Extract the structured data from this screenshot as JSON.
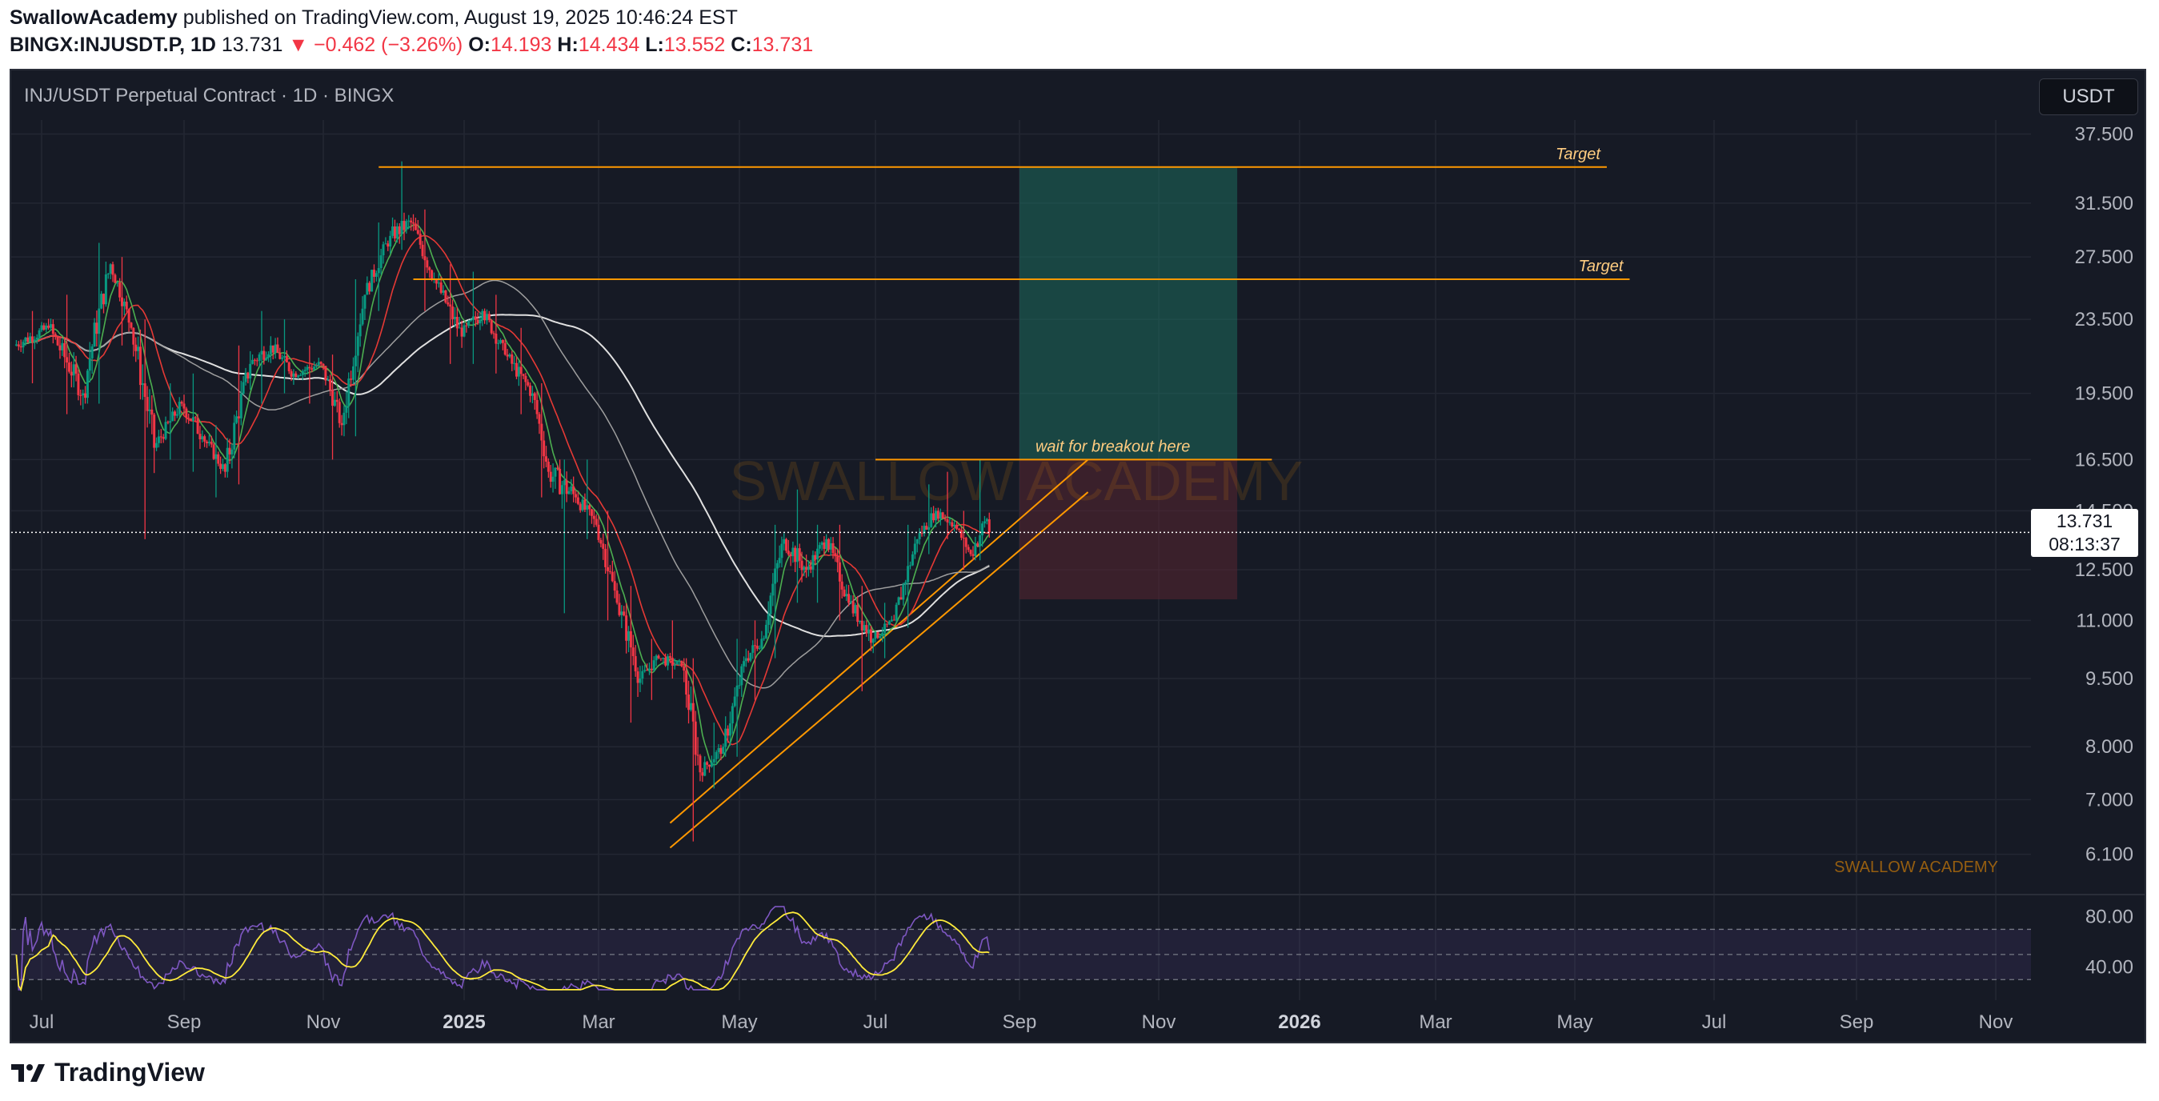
{
  "header": {
    "author": "SwallowAcademy",
    "published": "published on TradingView.com, August 19, 2025 10:46:24 EST",
    "symbol": "BINGX:INJUSDT.P, 1D",
    "last": "13.731",
    "change": "−0.462 (−3.26%)",
    "o_label": "O:",
    "o": "14.193",
    "h_label": "H:",
    "h": "14.434",
    "l_label": "L:",
    "l": "13.552",
    "c_label": "C:",
    "c": "13.731"
  },
  "chart_title": "INJ/USDT Perpetual Contract · 1D · BINGX",
  "currency_button": "USDT",
  "price_tag": {
    "price": "13.731",
    "countdown": "08:13:37"
  },
  "watermark": "SWALLOW ACADEMY",
  "signature": "SWALLOW ACADEMY",
  "footer": {
    "brand": "TradingView"
  },
  "colors": {
    "background": "#161a25",
    "up_candle": "#089981",
    "down_candle": "#f23645",
    "annotation": "#ff9800",
    "target_zone": "#1e6b5c",
    "stop_zone": "#5a2631",
    "ma_red": "#e53935",
    "ma_green": "#4caf50",
    "ma_white": "#e0e0e0",
    "ma_gray": "#9e9e9e",
    "rsi_line": "#7e57c2",
    "rsi_signal": "#ffeb3b"
  },
  "chart_data": {
    "type": "candlestick",
    "title": "INJ/USDT Perpetual Contract · 1D · BINGX",
    "x_ticks": [
      "Jul",
      "Sep",
      "Nov",
      "2025",
      "Mar",
      "May",
      "Jul",
      "Sep",
      "Nov",
      "2026",
      "Mar",
      "May",
      "Jul",
      "Sep",
      "Nov"
    ],
    "y_ticks": [
      "37.500",
      "31.500",
      "27.500",
      "23.500",
      "19.500",
      "16.500",
      "14.500",
      "12.500",
      "11.000",
      "9.500",
      "8.000",
      "7.000",
      "6.100"
    ],
    "y_scale": "log",
    "y_range": [
      5.6,
      39
    ],
    "candles": [
      {
        "date": "2024-06-20",
        "o": 22.0,
        "h": 24.0,
        "l": 20.0,
        "c": 23.0
      },
      {
        "date": "2024-07-05",
        "o": 23.0,
        "h": 25.0,
        "l": 18.5,
        "c": 19.5
      },
      {
        "date": "2024-07-20",
        "o": 19.5,
        "h": 28.5,
        "l": 19.0,
        "c": 27.0
      },
      {
        "date": "2024-08-01",
        "o": 27.0,
        "h": 27.5,
        "l": 22.0,
        "c": 23.0
      },
      {
        "date": "2024-08-10",
        "o": 23.0,
        "h": 23.5,
        "l": 13.5,
        "c": 17.0
      },
      {
        "date": "2024-08-20",
        "o": 17.0,
        "h": 20.0,
        "l": 16.5,
        "c": 19.0
      },
      {
        "date": "2024-09-01",
        "o": 19.0,
        "h": 20.5,
        "l": 16.0,
        "c": 17.5
      },
      {
        "date": "2024-09-10",
        "o": 17.5,
        "h": 18.0,
        "l": 15.0,
        "c": 16.0
      },
      {
        "date": "2024-09-20",
        "o": 16.0,
        "h": 22.0,
        "l": 15.5,
        "c": 21.0
      },
      {
        "date": "2024-10-01",
        "o": 21.0,
        "h": 24.0,
        "l": 19.0,
        "c": 22.0
      },
      {
        "date": "2024-10-10",
        "o": 22.0,
        "h": 23.5,
        "l": 19.5,
        "c": 20.5
      },
      {
        "date": "2024-10-20",
        "o": 20.5,
        "h": 22.0,
        "l": 19.0,
        "c": 21.0
      },
      {
        "date": "2024-11-01",
        "o": 21.0,
        "h": 21.5,
        "l": 16.5,
        "c": 18.0
      },
      {
        "date": "2024-11-10",
        "o": 18.0,
        "h": 26.0,
        "l": 17.5,
        "c": 25.0
      },
      {
        "date": "2024-11-20",
        "o": 25.0,
        "h": 30.0,
        "l": 24.0,
        "c": 29.0
      },
      {
        "date": "2024-12-01",
        "o": 29.0,
        "h": 35.0,
        "l": 28.0,
        "c": 30.0
      },
      {
        "date": "2024-12-10",
        "o": 30.0,
        "h": 31.0,
        "l": 24.0,
        "c": 26.0
      },
      {
        "date": "2024-12-20",
        "o": 26.0,
        "h": 27.0,
        "l": 21.0,
        "c": 22.5
      },
      {
        "date": "2025-01-01",
        "o": 22.5,
        "h": 26.5,
        "l": 21.0,
        "c": 24.0
      },
      {
        "date": "2025-01-10",
        "o": 24.0,
        "h": 25.0,
        "l": 20.5,
        "c": 21.5
      },
      {
        "date": "2025-01-20",
        "o": 21.5,
        "h": 23.0,
        "l": 18.5,
        "c": 19.5
      },
      {
        "date": "2025-02-01",
        "o": 19.5,
        "h": 20.0,
        "l": 15.0,
        "c": 16.0
      },
      {
        "date": "2025-02-08",
        "o": 16.0,
        "h": 16.5,
        "l": 11.2,
        "c": 15.0
      },
      {
        "date": "2025-02-20",
        "o": 15.0,
        "h": 16.5,
        "l": 13.5,
        "c": 14.0
      },
      {
        "date": "2025-03-01",
        "o": 14.0,
        "h": 14.5,
        "l": 11.0,
        "c": 11.5
      },
      {
        "date": "2025-03-10",
        "o": 11.5,
        "h": 12.0,
        "l": 8.5,
        "c": 9.5
      },
      {
        "date": "2025-03-20",
        "o": 9.5,
        "h": 10.5,
        "l": 9.0,
        "c": 10.0
      },
      {
        "date": "2025-03-28",
        "o": 10.0,
        "h": 11.0,
        "l": 9.5,
        "c": 9.8
      },
      {
        "date": "2025-04-07",
        "o": 9.8,
        "h": 10.0,
        "l": 6.3,
        "c": 7.5
      },
      {
        "date": "2025-04-15",
        "o": 7.5,
        "h": 8.5,
        "l": 7.2,
        "c": 8.0
      },
      {
        "date": "2025-04-25",
        "o": 8.0,
        "h": 10.5,
        "l": 7.8,
        "c": 10.0
      },
      {
        "date": "2025-05-05",
        "o": 10.0,
        "h": 11.0,
        "l": 9.0,
        "c": 10.5
      },
      {
        "date": "2025-05-12",
        "o": 10.5,
        "h": 14.0,
        "l": 10.0,
        "c": 13.5
      },
      {
        "date": "2025-05-22",
        "o": 13.5,
        "h": 15.3,
        "l": 11.5,
        "c": 12.5
      },
      {
        "date": "2025-06-01",
        "o": 12.5,
        "h": 14.0,
        "l": 11.5,
        "c": 13.5
      },
      {
        "date": "2025-06-10",
        "o": 13.5,
        "h": 14.0,
        "l": 11.0,
        "c": 11.5
      },
      {
        "date": "2025-06-20",
        "o": 11.5,
        "h": 12.0,
        "l": 9.2,
        "c": 10.5
      },
      {
        "date": "2025-07-01",
        "o": 10.5,
        "h": 11.5,
        "l": 10.0,
        "c": 11.0
      },
      {
        "date": "2025-07-10",
        "o": 11.0,
        "h": 14.0,
        "l": 10.8,
        "c": 13.5
      },
      {
        "date": "2025-07-20",
        "o": 13.5,
        "h": 15.5,
        "l": 13.0,
        "c": 14.5
      },
      {
        "date": "2025-07-28",
        "o": 14.5,
        "h": 16.0,
        "l": 13.5,
        "c": 14.0
      },
      {
        "date": "2025-08-05",
        "o": 14.0,
        "h": 14.5,
        "l": 12.5,
        "c": 13.0
      },
      {
        "date": "2025-08-12",
        "o": 13.0,
        "h": 16.5,
        "l": 12.8,
        "c": 14.2
      },
      {
        "date": "2025-08-19",
        "o": 14.193,
        "h": 14.434,
        "l": 13.552,
        "c": 13.731
      }
    ],
    "last_price": 13.731,
    "annotations": {
      "targets": [
        {
          "price": 34.5,
          "label": "Target",
          "from": "2024-11-25",
          "to": "2026-05-15"
        },
        {
          "price": 26.0,
          "label": "Target",
          "from": "2024-12-10",
          "to": "2026-05-25"
        }
      ],
      "breakout": {
        "price": 16.5,
        "label": "wait for breakout here",
        "from": "2025-07-01",
        "to": "2025-12-20"
      },
      "position": {
        "entry": 16.5,
        "target": 34.5,
        "stop": 11.6,
        "from": "2025-09-01",
        "to": "2025-12-05"
      },
      "channel": [
        {
          "from": {
            "date": "2025-04-01",
            "price": 6.6
          },
          "to": {
            "date": "2025-10-01",
            "price": 16.5
          }
        },
        {
          "from": {
            "date": "2025-04-01",
            "price": 6.2
          },
          "to": {
            "date": "2025-10-01",
            "price": 15.2
          }
        }
      ]
    },
    "rsi": {
      "y_ticks": [
        "80.00",
        "40.00"
      ],
      "levels": [
        70,
        50,
        30
      ],
      "range": [
        20,
        90
      ]
    }
  }
}
